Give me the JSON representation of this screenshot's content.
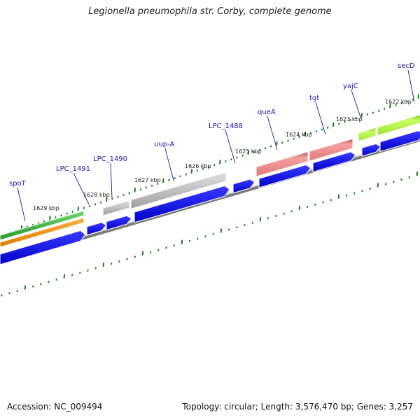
{
  "title": "Legionella pneumophila str. Corby, complete genome",
  "footer": {
    "accession_label": "Accession: NC_009494",
    "stats_label": "Topology: circular; Length: 3,576,470 bp; Genes: 3,257"
  },
  "kbp_labels": [
    {
      "name": "kbp-label-1629",
      "text": "1629 kbp"
    },
    {
      "name": "kbp-label-1628",
      "text": "1628 kbp"
    },
    {
      "name": "kbp-label-1627",
      "text": "1627 kbp"
    },
    {
      "name": "kbp-label-1626",
      "text": "1626 kbp"
    },
    {
      "name": "kbp-label-1625",
      "text": "1625 kbp"
    },
    {
      "name": "kbp-label-1624",
      "text": "1624 kbp"
    },
    {
      "name": "kbp-label-1623",
      "text": "1623 kbp"
    },
    {
      "name": "kbp-label-1622",
      "text": "1622 kbp"
    }
  ],
  "gene_labels": [
    {
      "name": "gene-label-spoT",
      "text": "spoT"
    },
    {
      "name": "gene-label-lpc-1491",
      "text": "LPC_1491"
    },
    {
      "name": "gene-label-lpc-1490",
      "text": "LPC_1490"
    },
    {
      "name": "gene-label-uup-a",
      "text": "uup-A"
    },
    {
      "name": "gene-label-lpc-1488",
      "text": "LPC_1488"
    },
    {
      "name": "gene-label-quea",
      "text": "queA"
    },
    {
      "name": "gene-label-tgt",
      "text": "tgt"
    },
    {
      "name": "gene-label-yajc",
      "text": "yajC"
    },
    {
      "name": "gene-label-secd",
      "text": "secD"
    }
  ],
  "colors": {
    "gene_label": "#1a1aa8",
    "cds_blue": "#0a0ae6",
    "backbone": "#7a7a7a",
    "tick": "#1f7a1f",
    "green": "#3db53d",
    "orange": "#f08a00",
    "gray": "#b8b8b8",
    "pink": "#ee8a8a",
    "lime": "#aef040"
  }
}
